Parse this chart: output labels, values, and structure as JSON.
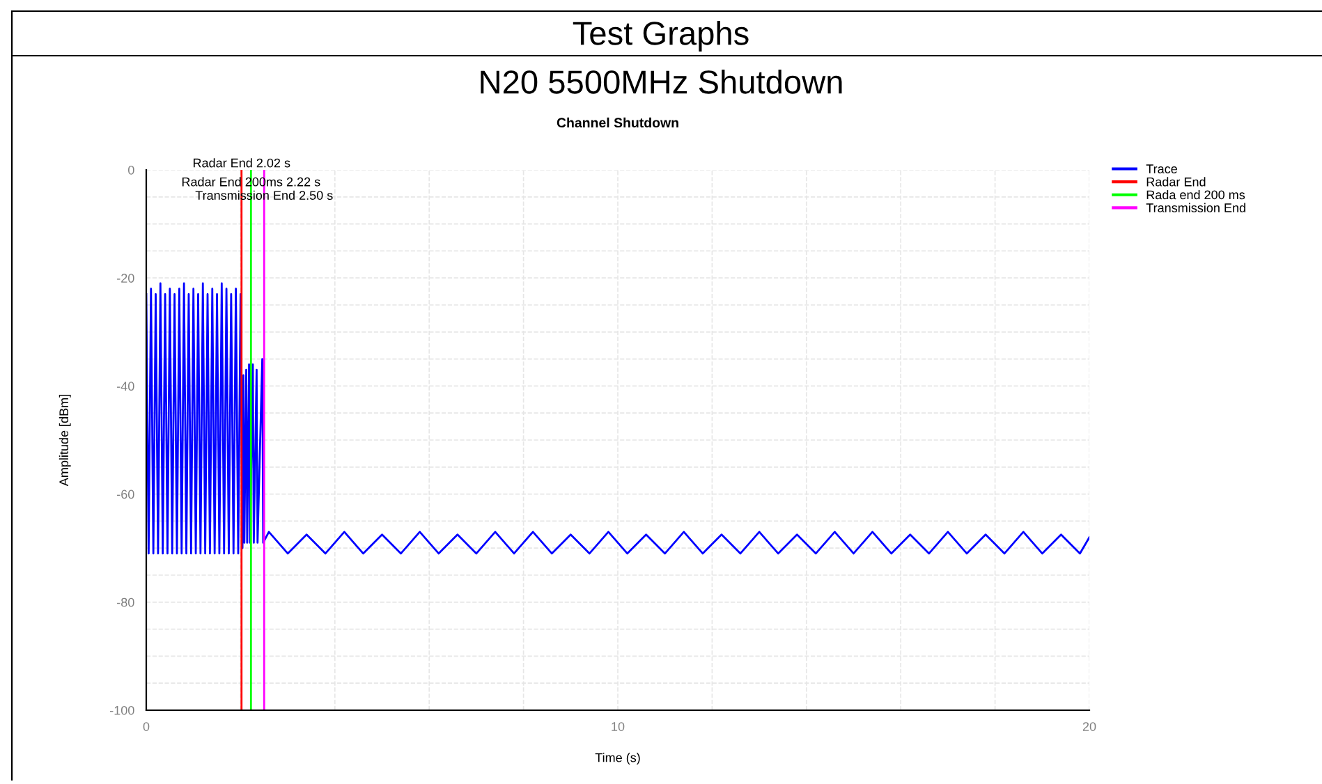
{
  "chart_data": {
    "type": "line",
    "title": "Channel Shutdown",
    "xlabel": "Time (s)",
    "ylabel": "Amplitude [dBm]",
    "annotations": [
      "Test Graphs",
      "N20 5500MHz Shutdown",
      {
        "text": "Radar End 2.02 s",
        "x": 2.02,
        "y": 0
      },
      {
        "text": "Radar End 200ms 2.22 s",
        "x": 2.22,
        "y": -3.5
      },
      {
        "text": "Transmission End 2.50 s",
        "x": 2.5,
        "y": -6
      }
    ],
    "xlim": [
      0,
      20
    ],
    "ylim": [
      -100,
      0
    ],
    "xticks": [
      0,
      {
        "value": 2,
        "label": null
      },
      {
        "value": 4,
        "label": null
      },
      {
        "value": 6,
        "label": null
      },
      {
        "value": 8,
        "label": null
      },
      10,
      {
        "value": 12,
        "label": null
      },
      {
        "value": 14,
        "label": null
      },
      {
        "value": 16,
        "label": null
      },
      {
        "value": 18,
        "label": null
      },
      20
    ],
    "yticks": [
      -100,
      {
        "value": -95,
        "label": null
      },
      {
        "value": -90,
        "label": null
      },
      {
        "value": -85,
        "label": null
      },
      -80,
      {
        "value": -75,
        "label": null
      },
      {
        "value": -70,
        "label": null
      },
      {
        "value": -65,
        "label": null
      },
      -60,
      {
        "value": -55,
        "label": null
      },
      {
        "value": -50,
        "label": null
      },
      {
        "value": -45,
        "label": null
      },
      -40,
      {
        "value": -35,
        "label": null
      },
      {
        "value": -30,
        "label": null
      },
      {
        "value": -25,
        "label": null
      },
      -20,
      {
        "value": -15,
        "label": null
      },
      {
        "value": -10,
        "label": null
      },
      {
        "value": -5,
        "label": null
      },
      0
    ],
    "grid": true,
    "legend": "top right",
    "series": [
      {
        "name": "Trace",
        "color": "#0000ff",
        "x": [
          0,
          0.05,
          0.1,
          0.15,
          0.2,
          0.25,
          0.3,
          0.35,
          0.4,
          0.45,
          0.5,
          0.55,
          0.6,
          0.65,
          0.7,
          0.75,
          0.8,
          0.85,
          0.9,
          0.95,
          1.0,
          1.05,
          1.1,
          1.15,
          1.2,
          1.25,
          1.3,
          1.35,
          1.4,
          1.45,
          1.5,
          1.55,
          1.6,
          1.65,
          1.7,
          1.75,
          1.8,
          1.85,
          1.9,
          1.95,
          2.0,
          2.04,
          2.06,
          2.08,
          2.12,
          2.14,
          2.18,
          2.2,
          2.26,
          2.28,
          2.34,
          2.36,
          2.46,
          2.48,
          2.6,
          3.0,
          3.4,
          3.8,
          4.2,
          4.6,
          5.0,
          5.4,
          5.8,
          6.2,
          6.6,
          7.0,
          7.4,
          7.8,
          8.2,
          8.6,
          9.0,
          9.4,
          9.8,
          10.2,
          10.6,
          11.0,
          11.4,
          11.8,
          12.2,
          12.6,
          13.0,
          13.4,
          13.8,
          14.2,
          14.6,
          15.0,
          15.4,
          15.8,
          16.2,
          16.6,
          17.0,
          17.4,
          17.8,
          18.2,
          18.6,
          19.0,
          19.4,
          19.8,
          20.0
        ],
        "values": [
          -23,
          -71,
          -22,
          -71,
          -23,
          -71,
          -21,
          -71,
          -23,
          -71,
          -22,
          -71,
          -23,
          -71,
          -22,
          -71,
          -21,
          -71,
          -23,
          -71,
          -22,
          -71,
          -23,
          -71,
          -21,
          -71,
          -23,
          -71,
          -22,
          -71,
          -23,
          -71,
          -21,
          -71,
          -22,
          -71,
          -23,
          -71,
          -22,
          -71,
          -23,
          -70,
          -38,
          -69,
          -37,
          -69,
          -36,
          -69,
          -36,
          -69,
          -37,
          -69,
          -35,
          -69,
          -67,
          -71,
          -67.5,
          -71,
          -67,
          -71,
          -67.5,
          -71,
          -67,
          -71,
          -67.5,
          -71,
          -67,
          -71,
          -67,
          -71,
          -67.5,
          -71,
          -67,
          -71,
          -67.5,
          -71,
          -67,
          -71,
          -67.5,
          -71,
          -67,
          -71,
          -67.5,
          -71,
          -67,
          -71,
          -67,
          -71,
          -67.5,
          -71,
          -67,
          -71,
          -67.5,
          -71,
          -67,
          -71,
          -67.5,
          -71,
          -68
        ]
      },
      {
        "name": "Radar End",
        "color": "#ff0000",
        "x": [
          2.02,
          2.02
        ],
        "values": [
          -100,
          0
        ]
      },
      {
        "name": "Rada end 200 ms",
        "color": "#00ff00",
        "x": [
          2.22,
          2.22
        ],
        "values": [
          -100,
          0
        ]
      },
      {
        "name": "Transmission End",
        "color": "#ff00ff",
        "x": [
          2.5,
          2.5
        ],
        "values": [
          -100,
          0
        ]
      }
    ]
  }
}
